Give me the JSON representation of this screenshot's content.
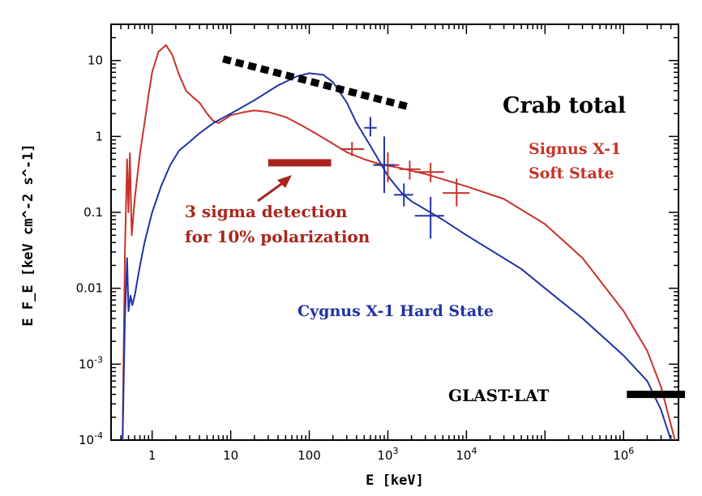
{
  "chart_data": {
    "type": "line",
    "xlabel": "E [keV]",
    "ylabel": "E F_E [keV cm^-2 s^-1]",
    "x_scale": "log",
    "y_scale": "log",
    "xlim": [
      0.3,
      5000000
    ],
    "ylim": [
      0.0001,
      30
    ],
    "x_ticks": [
      {
        "value": 1,
        "label": "1"
      },
      {
        "value": 10,
        "label": "10"
      },
      {
        "value": 100,
        "label": "100"
      },
      {
        "value": 1000,
        "label": "10",
        "exp": "3"
      },
      {
        "value": 10000,
        "label": "10",
        "exp": "4"
      },
      {
        "value": 1000000,
        "label": "10",
        "exp": "6"
      }
    ],
    "y_ticks": [
      {
        "value": 10,
        "label": "10"
      },
      {
        "value": 1,
        "label": "1"
      },
      {
        "value": 0.1,
        "label": "0.1"
      },
      {
        "value": 0.01,
        "label": "0.01"
      },
      {
        "value": 0.001,
        "label": "10",
        "exp": "-3"
      },
      {
        "value": 0.0001,
        "label": "10",
        "exp": "-4"
      }
    ],
    "colors": {
      "soft": "#c8322a",
      "hard": "#2232a6",
      "crab": "#000000",
      "detection": "#a8261e",
      "glast": "#000000"
    },
    "series": [
      {
        "name": "Signus X-1 Soft State",
        "color": "#c8322a",
        "x": [
          0.42,
          0.45,
          0.48,
          0.5,
          0.52,
          0.55,
          0.6,
          0.7,
          0.8,
          0.9,
          1.0,
          1.2,
          1.5,
          1.8,
          2.2,
          2.7,
          3.3,
          4.0,
          5.0,
          6.0,
          7.0,
          8.5,
          10,
          15,
          20,
          30,
          50,
          80,
          120,
          200,
          300,
          500,
          800,
          1500,
          3000,
          10000,
          30000,
          100000,
          300000,
          1000000,
          2000000,
          3000000,
          4500000
        ],
        "y": [
          0.0001,
          0.03,
          0.5,
          0.1,
          0.6,
          0.05,
          0.15,
          0.6,
          1.5,
          3.5,
          7,
          13,
          16,
          12,
          6.5,
          4.0,
          3.3,
          2.8,
          2.0,
          1.6,
          1.5,
          1.7,
          1.9,
          2.1,
          2.2,
          2.1,
          1.8,
          1.4,
          1.1,
          0.8,
          0.62,
          0.5,
          0.43,
          0.38,
          0.32,
          0.22,
          0.15,
          0.07,
          0.025,
          0.005,
          0.0015,
          0.0005,
          0.0001
        ]
      },
      {
        "name": "Cygnus X-1 Hard State",
        "color": "#2232a6",
        "x": [
          0.42,
          0.45,
          0.48,
          0.5,
          0.53,
          0.56,
          0.6,
          0.7,
          0.8,
          1.0,
          1.3,
          1.7,
          2.2,
          3.0,
          4.0,
          6.0,
          10,
          20,
          40,
          70,
          100,
          150,
          200,
          300,
          400,
          600,
          800,
          1000,
          1500,
          2000,
          5000,
          10000,
          50000,
          100000,
          300000,
          1000000,
          2000000,
          3000000,
          4000000
        ],
        "y": [
          0.0001,
          0.004,
          0.025,
          0.005,
          0.008,
          0.006,
          0.008,
          0.02,
          0.04,
          0.1,
          0.22,
          0.42,
          0.65,
          0.85,
          1.1,
          1.5,
          2.0,
          3.0,
          4.7,
          6.2,
          6.8,
          6.5,
          5.2,
          2.8,
          1.5,
          0.75,
          0.45,
          0.3,
          0.18,
          0.14,
          0.08,
          0.05,
          0.018,
          0.01,
          0.004,
          0.0013,
          0.0006,
          0.00025,
          0.0001
        ]
      },
      {
        "name": "Crab total",
        "color": "#000000",
        "style": "dotted",
        "x": [
          8,
          2000
        ],
        "y": [
          10.5,
          2.4
        ]
      }
    ],
    "data_markers": [
      {
        "series": "Signus X-1 Soft State",
        "x": 1000,
        "y": 0.42,
        "xerr": [
          700,
          1400
        ],
        "yerr": [
          0.25,
          0.62
        ]
      },
      {
        "series": "Signus X-1 Soft State",
        "x": 1900,
        "y": 0.37,
        "xerr": [
          1400,
          2600
        ],
        "yerr": [
          0.27,
          0.48
        ]
      },
      {
        "series": "Signus X-1 Soft State",
        "x": 3500,
        "y": 0.34,
        "xerr": [
          2200,
          5200
        ],
        "yerr": [
          0.25,
          0.45
        ]
      },
      {
        "series": "Signus X-1 Soft State",
        "x": 7500,
        "y": 0.18,
        "xerr": [
          5000,
          11000
        ],
        "yerr": [
          0.12,
          0.28
        ]
      },
      {
        "series": "Signus X-1 Soft State",
        "x": 350,
        "y": 0.68,
        "xerr": [
          250,
          500
        ],
        "yerr": [
          0.55,
          0.85
        ]
      },
      {
        "series": "Cygnus X-1 Hard State",
        "x": 900,
        "y": 0.42,
        "xerr": [
          650,
          1250
        ],
        "yerr": [
          0.18,
          1.0
        ]
      },
      {
        "series": "Cygnus X-1 Hard State",
        "x": 1600,
        "y": 0.17,
        "xerr": [
          1200,
          2100
        ],
        "yerr": [
          0.12,
          0.24
        ]
      },
      {
        "series": "Cygnus X-1 Hard State",
        "x": 3500,
        "y": 0.09,
        "xerr": [
          2200,
          5200
        ],
        "yerr": [
          0.045,
          0.16
        ]
      },
      {
        "series": "Cygnus X-1 Hard State",
        "x": 600,
        "y": 1.3,
        "xerr": [
          500,
          720
        ],
        "yerr": [
          1.0,
          1.8
        ]
      }
    ],
    "segments": [
      {
        "name": "detection",
        "x": [
          30,
          190
        ],
        "y": 0.45,
        "color": "#a8261e"
      },
      {
        "name": "glast",
        "x": [
          1100000,
          5000000
        ],
        "y": 0.0004,
        "color": "#000000"
      }
    ],
    "annotations": {
      "crab": "Crab total",
      "signus_line1": "Signus X-1",
      "signus_line2": "Soft State",
      "cygnus": "Cygnus X-1 Hard State",
      "sigma_line1": "3 sigma detection",
      "sigma_line2": "for 10% polarization",
      "glast": "GLAST-LAT"
    }
  }
}
